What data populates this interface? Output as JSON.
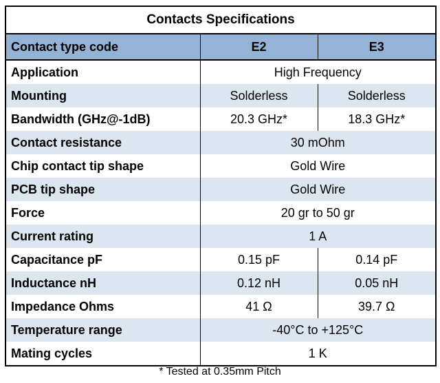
{
  "table": {
    "title": "Contacts Specifications",
    "header": [
      "Contact type code",
      "E2",
      "E3"
    ],
    "rows": [
      {
        "label": "Application",
        "cells": [
          "High Frequency"
        ]
      },
      {
        "label": "Mounting",
        "cells": [
          "Solderless",
          "Solderless"
        ]
      },
      {
        "label": "Bandwidth (GHz@-1dB)",
        "cells": [
          "20.3 GHz*",
          "18.3 GHz*"
        ]
      },
      {
        "label": "Contact resistance",
        "cells": [
          "30 mOhm"
        ]
      },
      {
        "label": "Chip contact tip shape",
        "cells": [
          "Gold Wire"
        ]
      },
      {
        "label": "PCB tip shape",
        "cells": [
          "Gold Wire"
        ]
      },
      {
        "label": "Force",
        "cells": [
          "20 gr to 50 gr"
        ]
      },
      {
        "label": "Current rating",
        "cells": [
          "1 A"
        ]
      },
      {
        "label": "Capacitance pF",
        "cells": [
          "0.15 pF",
          "0.14 pF"
        ]
      },
      {
        "label": "Inductance nH",
        "cells": [
          "0.12 nH",
          "0.05 nH"
        ]
      },
      {
        "label": "Impedance Ohms",
        "cells": [
          "41 Ω",
          "39.7 Ω"
        ]
      },
      {
        "label": "Temperature range",
        "cells": [
          "-40°C to +125°C"
        ]
      },
      {
        "label": "Mating cycles",
        "cells": [
          "1 K"
        ]
      }
    ],
    "footnote": "* Tested at 0.35mm Pitch"
  }
}
